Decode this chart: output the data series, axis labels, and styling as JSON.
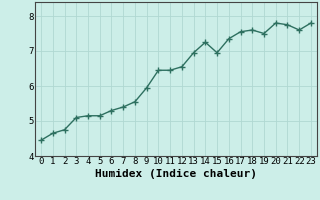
{
  "title": "",
  "xlabel": "Humidex (Indice chaleur)",
  "ylabel": "",
  "x": [
    0,
    1,
    2,
    3,
    4,
    5,
    6,
    7,
    8,
    9,
    10,
    11,
    12,
    13,
    14,
    15,
    16,
    17,
    18,
    19,
    20,
    21,
    22,
    23
  ],
  "y": [
    4.45,
    4.65,
    4.75,
    5.1,
    5.15,
    5.15,
    5.3,
    5.4,
    5.55,
    5.95,
    6.45,
    6.45,
    6.55,
    6.95,
    7.25,
    6.95,
    7.35,
    7.55,
    7.6,
    7.5,
    7.8,
    7.75,
    7.6,
    7.8
  ],
  "line_color": "#2e7060",
  "marker": "+",
  "marker_size": 4,
  "bg_color": "#cceee8",
  "grid_color": "#b0d8d2",
  "axis_bg": "#cceee8",
  "ylim": [
    4.0,
    8.4
  ],
  "xlim": [
    -0.5,
    23.5
  ],
  "yticks": [
    4,
    5,
    6,
    7,
    8
  ],
  "xticks": [
    0,
    1,
    2,
    3,
    4,
    5,
    6,
    7,
    8,
    9,
    10,
    11,
    12,
    13,
    14,
    15,
    16,
    17,
    18,
    19,
    20,
    21,
    22,
    23
  ],
  "tick_label_fontsize": 6.5,
  "xlabel_fontsize": 8,
  "line_width": 1.0,
  "marker_linewidth": 1.0
}
